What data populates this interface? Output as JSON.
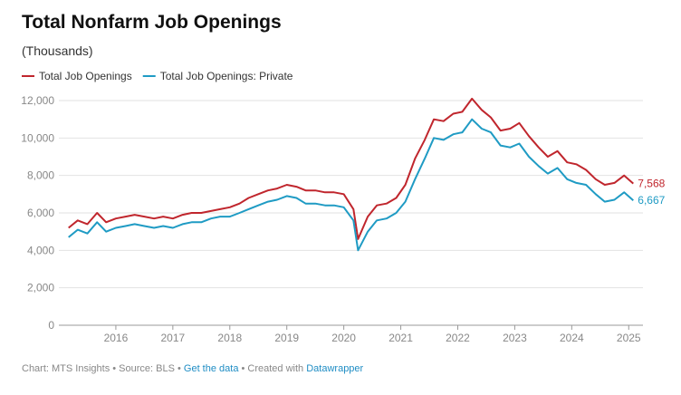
{
  "chart_data": {
    "type": "line",
    "title": "Total Nonfarm Job Openings",
    "subtitle": "(Thousands)",
    "x": [
      2015.17,
      2015.33,
      2015.5,
      2015.67,
      2015.83,
      2016,
      2016.17,
      2016.33,
      2016.5,
      2016.67,
      2016.83,
      2017,
      2017.17,
      2017.33,
      2017.5,
      2017.67,
      2017.83,
      2018,
      2018.17,
      2018.33,
      2018.5,
      2018.67,
      2018.83,
      2019,
      2019.17,
      2019.33,
      2019.5,
      2019.67,
      2019.83,
      2020,
      2020.17,
      2020.25,
      2020.42,
      2020.58,
      2020.75,
      2020.92,
      2021.08,
      2021.25,
      2021.42,
      2021.58,
      2021.75,
      2021.92,
      2022.08,
      2022.25,
      2022.42,
      2022.58,
      2022.75,
      2022.92,
      2023.08,
      2023.25,
      2023.42,
      2023.58,
      2023.75,
      2023.92,
      2024.08,
      2024.25,
      2024.42,
      2024.58,
      2024.75,
      2024.92,
      2025.08
    ],
    "series": [
      {
        "name": "Total Job Openings",
        "color": "#c0262d",
        "values": [
          5200,
          5600,
          5400,
          6000,
          5500,
          5700,
          5800,
          5900,
          5800,
          5700,
          5800,
          5700,
          5900,
          6000,
          6000,
          6100,
          6200,
          6300,
          6500,
          6800,
          7000,
          7200,
          7300,
          7500,
          7400,
          7200,
          7200,
          7100,
          7100,
          7000,
          6200,
          4600,
          5800,
          6400,
          6500,
          6800,
          7500,
          8900,
          9900,
          11000,
          10900,
          11300,
          11400,
          12100,
          11500,
          11100,
          10400,
          10500,
          10800,
          10100,
          9500,
          9000,
          9300,
          8700,
          8600,
          8300,
          7800,
          7500,
          7600,
          8000,
          7568
        ],
        "value_labels": [
          null,
          null,
          null,
          null,
          null,
          null,
          null,
          null,
          null,
          null,
          null,
          null,
          null,
          null,
          null,
          null,
          null,
          null,
          null,
          null,
          null,
          null,
          null,
          null,
          null,
          null,
          null,
          null,
          null,
          null,
          null,
          null,
          null,
          null,
          null,
          null,
          null,
          null,
          null,
          null,
          null,
          null,
          null,
          null,
          null,
          null,
          null,
          null,
          null,
          null,
          null,
          null,
          null,
          null,
          null,
          null,
          null,
          null,
          null,
          null,
          "7,568"
        ]
      },
      {
        "name": "Total Job Openings: Private",
        "color": "#1f9bc4",
        "values": [
          4700,
          5100,
          4900,
          5500,
          5000,
          5200,
          5300,
          5400,
          5300,
          5200,
          5300,
          5200,
          5400,
          5500,
          5500,
          5700,
          5800,
          5800,
          6000,
          6200,
          6400,
          6600,
          6700,
          6900,
          6800,
          6500,
          6500,
          6400,
          6400,
          6300,
          5600,
          4000,
          5000,
          5600,
          5700,
          6000,
          6600,
          7800,
          8900,
          10000,
          9900,
          10200,
          10300,
          11000,
          10500,
          10300,
          9600,
          9500,
          9700,
          9000,
          8500,
          8100,
          8400,
          7800,
          7600,
          7500,
          7000,
          6600,
          6700,
          7100,
          6667
        ],
        "value_labels": [
          null,
          null,
          null,
          null,
          null,
          null,
          null,
          null,
          null,
          null,
          null,
          null,
          null,
          null,
          null,
          null,
          null,
          null,
          null,
          null,
          null,
          null,
          null,
          null,
          null,
          null,
          null,
          null,
          null,
          null,
          null,
          null,
          null,
          null,
          null,
          null,
          null,
          null,
          null,
          null,
          null,
          null,
          null,
          null,
          null,
          null,
          null,
          null,
          null,
          null,
          null,
          null,
          null,
          null,
          null,
          null,
          null,
          null,
          null,
          null,
          "6,667"
        ]
      }
    ],
    "xlim": [
      2015,
      2025.25
    ],
    "xticks": [
      2016,
      2017,
      2018,
      2019,
      2020,
      2021,
      2022,
      2023,
      2024,
      2025
    ],
    "ylim": [
      0,
      12000
    ],
    "yticks": [
      0,
      {
        "value": 2000,
        "label": "2,000"
      },
      {
        "value": 4000,
        "label": "4,000"
      },
      {
        "value": 6000,
        "label": "6,000"
      },
      {
        "value": 8000,
        "label": "8,000"
      },
      {
        "value": 10000,
        "label": "10,000"
      },
      {
        "value": 12000,
        "label": "12,000"
      }
    ],
    "grid": true,
    "legend": "top",
    "footer": {
      "prefix": "Chart: MTS Insights • Source: BLS •",
      "link1": "Get the data",
      "middle": "• Created with",
      "link2": "Datawrapper"
    }
  }
}
